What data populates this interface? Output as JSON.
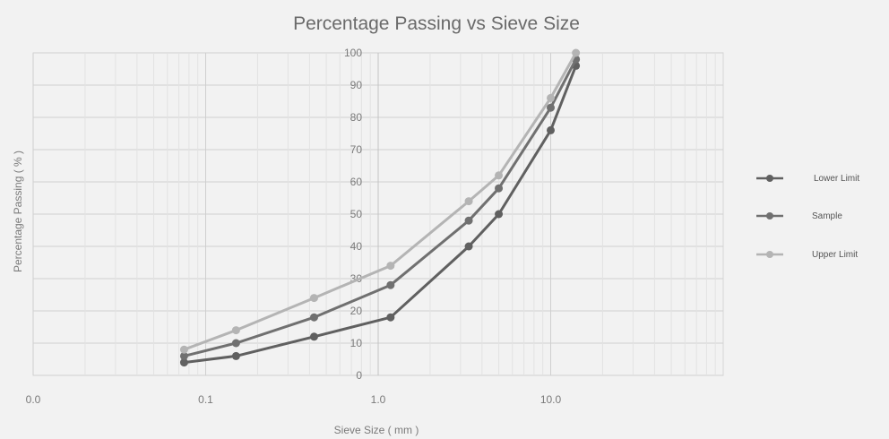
{
  "chart_data": {
    "type": "line",
    "title": "Percentage Passing vs Sieve Size",
    "xlabel": "Sieve Size ( mm )",
    "ylabel": "Percentage Passing ( % )",
    "x_scale": "log",
    "xlim": [
      0.01,
      100
    ],
    "ylim": [
      0,
      100
    ],
    "x_tick_labels": [
      "0.0",
      "0.1",
      "1.0",
      "10.0"
    ],
    "y_tick_labels": [
      "0",
      "10",
      "20",
      "30",
      "40",
      "50",
      "60",
      "70",
      "80",
      "90",
      "100"
    ],
    "grid": true,
    "legend_position": "right",
    "x": [
      0.075,
      0.15,
      0.425,
      1.18,
      3.35,
      5.0,
      10.0,
      14.0
    ],
    "series": [
      {
        "name": "Lower Limit",
        "values": [
          4,
          6,
          12,
          18,
          40,
          50,
          76,
          96
        ],
        "color": "#606060"
      },
      {
        "name": "Sample",
        "values": [
          6,
          10,
          18,
          28,
          48,
          58,
          83,
          98
        ],
        "color": "#707070"
      },
      {
        "name": "Upper Limit",
        "values": [
          8,
          14,
          24,
          34,
          54,
          62,
          86,
          100
        ],
        "color": "#b4b4b4"
      }
    ]
  }
}
